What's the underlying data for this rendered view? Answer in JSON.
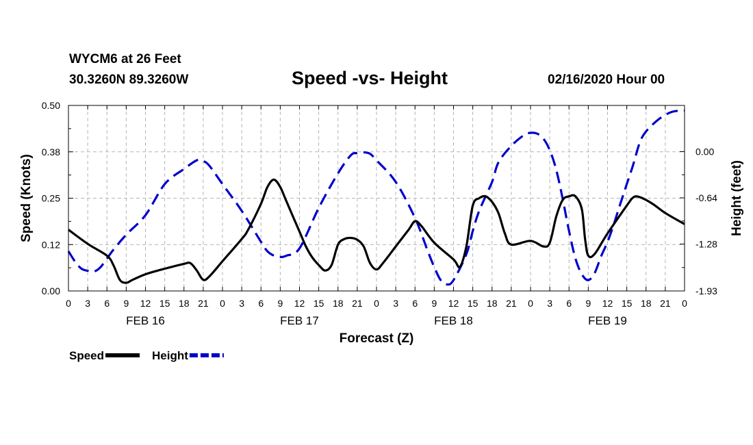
{
  "header": {
    "station": "WYCM6 at 26 Feet",
    "coords": "30.3260N 89.3260W",
    "title": "Speed -vs- Height",
    "issued": "02/16/2020 Hour 00"
  },
  "chart_data": {
    "type": "line",
    "title": "Speed -vs- Height",
    "xlabel": "Forecast (Z)",
    "ylabel_left": "Speed (Knots)",
    "ylabel_right": "Height (feet)",
    "x_hours_range": [
      0,
      96
    ],
    "x_tick_step_hours": 3,
    "x_tick_labels": [
      "0",
      "3",
      "6",
      "9",
      "12",
      "15",
      "18",
      "21",
      "0",
      "3",
      "6",
      "9",
      "12",
      "15",
      "18",
      "21",
      "0",
      "3",
      "6",
      "9",
      "12",
      "15",
      "18",
      "21",
      "0",
      "3",
      "6",
      "9",
      "12",
      "15",
      "18",
      "21",
      "0"
    ],
    "date_labels": [
      {
        "label": "FEB 16",
        "hour": 12
      },
      {
        "label": "FEB 17",
        "hour": 36
      },
      {
        "label": "FEB 18",
        "hour": 60
      },
      {
        "label": "FEB 19",
        "hour": 84
      }
    ],
    "y_left": {
      "range": [
        0,
        0.5
      ],
      "ticks": [
        0,
        0.125,
        0.25,
        0.375,
        0.5
      ],
      "tick_labels": [
        "0.00",
        "0.12",
        "0.25",
        "0.38",
        "0.50"
      ]
    },
    "y_right": {
      "range": [
        -1.93,
        0.64
      ],
      "ticks": [
        -1.93,
        -1.28,
        -0.64,
        0.0
      ],
      "tick_labels": [
        "-1.93",
        "-1.28",
        "-0.64",
        "0.00"
      ]
    },
    "grid": true,
    "series": [
      {
        "name": "Speed",
        "color": "#000000",
        "dash": "solid",
        "axis": "left",
        "points": [
          [
            0,
            0.165
          ],
          [
            3,
            0.127
          ],
          [
            6,
            0.095
          ],
          [
            7,
            0.07
          ],
          [
            8,
            0.03
          ],
          [
            9,
            0.022
          ],
          [
            10,
            0.03
          ],
          [
            12,
            0.045
          ],
          [
            15,
            0.06
          ],
          [
            18,
            0.073
          ],
          [
            19,
            0.075
          ],
          [
            20,
            0.055
          ],
          [
            21,
            0.03
          ],
          [
            22,
            0.04
          ],
          [
            24,
            0.08
          ],
          [
            27,
            0.14
          ],
          [
            28,
            0.165
          ],
          [
            30,
            0.235
          ],
          [
            31,
            0.28
          ],
          [
            32,
            0.3
          ],
          [
            33,
            0.28
          ],
          [
            34,
            0.24
          ],
          [
            36,
            0.16
          ],
          [
            37,
            0.12
          ],
          [
            38,
            0.09
          ],
          [
            39,
            0.07
          ],
          [
            40,
            0.055
          ],
          [
            41,
            0.07
          ],
          [
            42,
            0.125
          ],
          [
            43,
            0.14
          ],
          [
            44,
            0.143
          ],
          [
            45,
            0.138
          ],
          [
            46,
            0.12
          ],
          [
            47,
            0.075
          ],
          [
            48,
            0.058
          ],
          [
            49,
            0.075
          ],
          [
            51,
            0.12
          ],
          [
            53,
            0.165
          ],
          [
            54,
            0.188
          ],
          [
            55,
            0.175
          ],
          [
            57,
            0.13
          ],
          [
            60,
            0.085
          ],
          [
            61,
            0.065
          ],
          [
            62,
            0.12
          ],
          [
            63,
            0.23
          ],
          [
            64,
            0.25
          ],
          [
            65,
            0.255
          ],
          [
            66,
            0.24
          ],
          [
            67,
            0.21
          ],
          [
            68,
            0.155
          ],
          [
            69,
            0.125
          ],
          [
            72,
            0.135
          ],
          [
            74,
            0.12
          ],
          [
            75,
            0.13
          ],
          [
            76,
            0.2
          ],
          [
            77,
            0.245
          ],
          [
            78,
            0.255
          ],
          [
            79,
            0.255
          ],
          [
            80,
            0.22
          ],
          [
            80.5,
            0.14
          ],
          [
            81,
            0.095
          ],
          [
            82,
            0.1
          ],
          [
            84,
            0.155
          ],
          [
            87,
            0.23
          ],
          [
            88,
            0.252
          ],
          [
            89,
            0.253
          ],
          [
            91,
            0.235
          ],
          [
            93,
            0.21
          ],
          [
            96,
            0.18
          ]
        ]
      },
      {
        "name": "Height",
        "color": "#0000cc",
        "dash": "dashed",
        "axis": "right",
        "points": [
          [
            0,
            -1.38
          ],
          [
            1,
            -1.52
          ],
          [
            2,
            -1.62
          ],
          [
            3,
            -1.65
          ],
          [
            4,
            -1.66
          ],
          [
            5,
            -1.6
          ],
          [
            6,
            -1.48
          ],
          [
            7,
            -1.36
          ],
          [
            9,
            -1.15
          ],
          [
            12,
            -0.88
          ],
          [
            15,
            -0.45
          ],
          [
            18,
            -0.24
          ],
          [
            20,
            -0.12
          ],
          [
            21,
            -0.13
          ],
          [
            22,
            -0.2
          ],
          [
            24,
            -0.45
          ],
          [
            27,
            -0.82
          ],
          [
            30,
            -1.25
          ],
          [
            31,
            -1.38
          ],
          [
            32,
            -1.44
          ],
          [
            33,
            -1.46
          ],
          [
            34,
            -1.44
          ],
          [
            36,
            -1.34
          ],
          [
            39,
            -0.78
          ],
          [
            42,
            -0.3
          ],
          [
            44,
            -0.05
          ],
          [
            45,
            -0.02
          ],
          [
            46,
            -0.01
          ],
          [
            47,
            -0.03
          ],
          [
            48,
            -0.12
          ],
          [
            51,
            -0.42
          ],
          [
            54,
            -0.92
          ],
          [
            56,
            -1.38
          ],
          [
            57,
            -1.6
          ],
          [
            58,
            -1.78
          ],
          [
            59,
            -1.84
          ],
          [
            60,
            -1.78
          ],
          [
            62,
            -1.42
          ],
          [
            63,
            -1.1
          ],
          [
            64,
            -0.82
          ],
          [
            66,
            -0.42
          ],
          [
            67,
            -0.15
          ],
          [
            69,
            0.08
          ],
          [
            71,
            0.23
          ],
          [
            72,
            0.26
          ],
          [
            73,
            0.25
          ],
          [
            74,
            0.18
          ],
          [
            75,
            0.02
          ],
          [
            76,
            -0.25
          ],
          [
            77,
            -0.65
          ],
          [
            78,
            -1.1
          ],
          [
            79,
            -1.48
          ],
          [
            80,
            -1.7
          ],
          [
            81,
            -1.78
          ],
          [
            82,
            -1.68
          ],
          [
            83,
            -1.45
          ],
          [
            84,
            -1.25
          ],
          [
            85,
            -1.0
          ],
          [
            86,
            -0.72
          ],
          [
            87,
            -0.45
          ],
          [
            88,
            -0.18
          ],
          [
            89,
            0.12
          ],
          [
            90,
            0.28
          ],
          [
            92,
            0.45
          ],
          [
            94,
            0.55
          ],
          [
            96,
            0.57
          ]
        ]
      }
    ],
    "legend": [
      {
        "label": "Speed",
        "color": "#000000",
        "dash": "solid"
      },
      {
        "label": "Height",
        "color": "#0000cc",
        "dash": "dashed"
      }
    ]
  }
}
